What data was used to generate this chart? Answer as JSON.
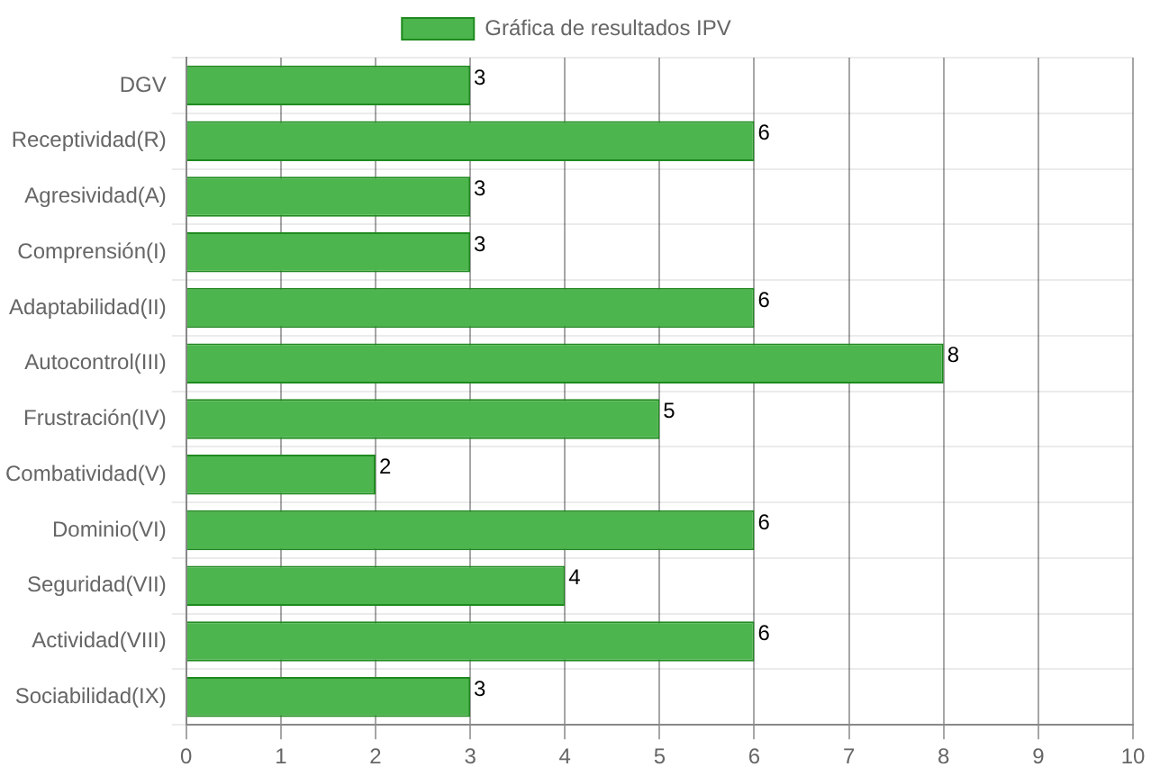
{
  "chart_data": {
    "type": "bar",
    "orientation": "horizontal",
    "categories": [
      "DGV",
      "Receptividad(R)",
      "Agresividad(A)",
      "Comprensión(I)",
      "Adaptabilidad(II)",
      "Autocontrol(III)",
      "Frustración(IV)",
      "Combatividad(V)",
      "Dominio(VI)",
      "Seguridad(VII)",
      "Actividad(VIII)",
      "Sociabilidad(IX)"
    ],
    "series": [
      {
        "name": "Gráfica de resultados IPV",
        "color": "#4db54d",
        "values": [
          3,
          6,
          3,
          3,
          6,
          8,
          5,
          2,
          6,
          4,
          6,
          3
        ]
      }
    ],
    "xlim": [
      0,
      10
    ],
    "xticks": [
      0,
      1,
      2,
      3,
      4,
      5,
      6,
      7,
      8,
      9,
      10
    ],
    "grid": true,
    "legend": "top",
    "data_labels": true
  }
}
